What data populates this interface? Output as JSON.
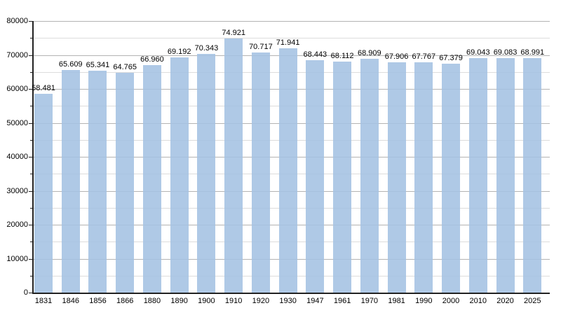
{
  "chart_data": {
    "type": "bar",
    "title": "",
    "xlabel": "",
    "ylabel": "",
    "categories": [
      "1831",
      "1846",
      "1856",
      "1866",
      "1880",
      "1890",
      "1900",
      "1910",
      "1920",
      "1930",
      "1947",
      "1961",
      "1970",
      "1981",
      "1990",
      "2000",
      "2010",
      "2020",
      "2025"
    ],
    "values": [
      58481,
      65609,
      65341,
      64765,
      66960,
      69192,
      70343,
      74921,
      70717,
      71941,
      68443,
      68112,
      68909,
      67906,
      67767,
      67379,
      69043,
      69083,
      68991
    ],
    "value_labels": [
      "58.481",
      "65.609",
      "65.341",
      "64.765",
      "66.960",
      "69.192",
      "70.343",
      "74.921",
      "70.717",
      "71.941",
      "68.443",
      "68.112",
      "68.909",
      "67.906",
      "67.767",
      "67.379",
      "69.043",
      "69.083",
      "68.991"
    ],
    "ylim": [
      0,
      80000
    ],
    "y_major_step": 10000,
    "y_minor_step": 5000,
    "y_tick_labels": [
      "0",
      "10000",
      "20000",
      "30000",
      "40000",
      "50000",
      "60000",
      "70000",
      "80000"
    ],
    "grid": "on",
    "legend": "none",
    "colors": {
      "bar_fill": "rgba(164,194,227,0.88)",
      "bar_fill_flat": "#b0c9e5",
      "major_gridline": "#b3b3b3",
      "minor_gridline": "#dcdcdc",
      "axis": "#222222",
      "text": "#000000",
      "background": "#ffffff"
    }
  }
}
